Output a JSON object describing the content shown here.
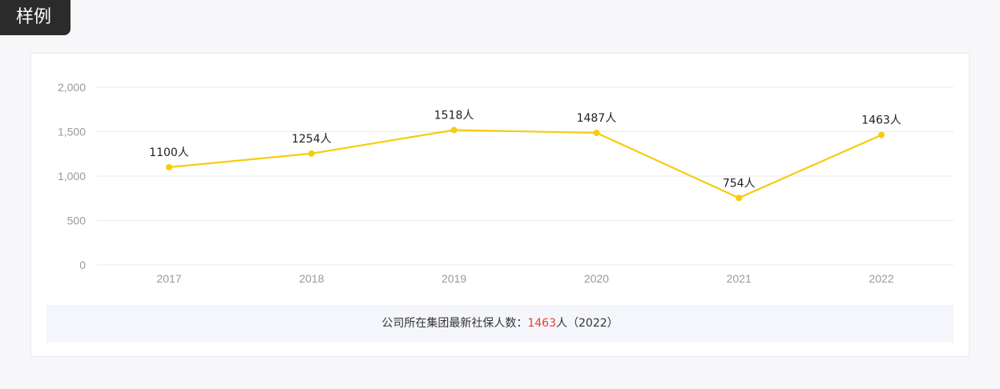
{
  "badge": {
    "label": "样例"
  },
  "footer": {
    "prefix": "公司所在集团最新社保人数：",
    "value": "1463",
    "suffix": "人（2022）"
  },
  "colors": {
    "line": "#f6cc0e",
    "grid": "#e6e9f0",
    "tick": "#9a9a9a",
    "label": "#222222",
    "highlight": "#e8402a"
  },
  "chart_data": {
    "type": "line",
    "categories": [
      "2017",
      "2018",
      "2019",
      "2020",
      "2021",
      "2022"
    ],
    "series": [
      {
        "values": [
          1100,
          1254,
          1518,
          1487,
          754,
          1463
        ]
      }
    ],
    "data_labels": [
      "1100人",
      "1254人",
      "1518人",
      "1487人",
      "754人",
      "1463人"
    ],
    "ylim": [
      0,
      2000
    ],
    "yticks": [
      0,
      500,
      1000,
      1500,
      2000
    ],
    "ytick_labels": [
      "0",
      "500",
      "1,000",
      "1,500",
      "2,000"
    ],
    "grid": true,
    "title": "",
    "xlabel": "",
    "ylabel": ""
  }
}
